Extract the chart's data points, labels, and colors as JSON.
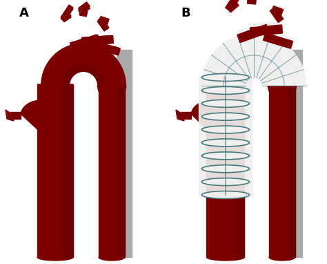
{
  "background_color": "#ffffff",
  "label_A": "A",
  "label_B": "B",
  "label_fontsize": 13,
  "label_fontweight": "bold",
  "aorta_dark": "#7B0000",
  "aorta_shadow": "#5A0000",
  "stent_white": "#EFEFEF",
  "stent_wire": "#4A7A7A",
  "stent_shadow": "#D0D0D0",
  "fig_width": 4.74,
  "fig_height": 3.82,
  "dpi": 100
}
